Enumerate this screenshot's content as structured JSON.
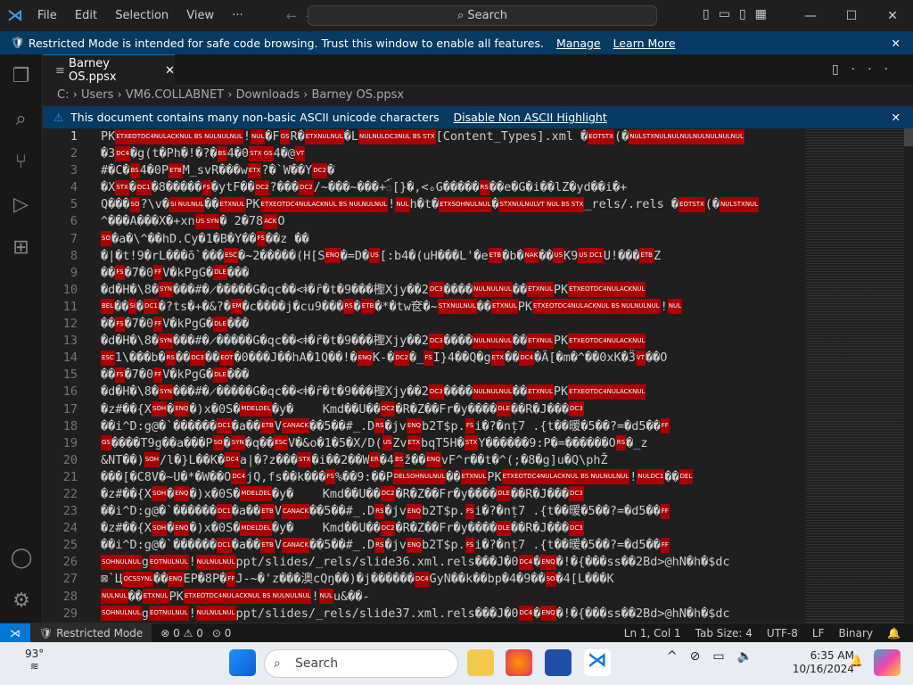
{
  "title_bar": {
    "menu": [
      "File",
      "Edit",
      "Selection",
      "View",
      "···"
    ],
    "search": "Search"
  },
  "banner": {
    "text": "Restricted Mode is intended for safe code browsing. Trust this window to enable all features.",
    "manage": "Manage",
    "learn_more": "Learn More"
  },
  "tab": {
    "label": "Barney OS.ppsx"
  },
  "breadcrumb": [
    "C:",
    "Users",
    "VM6.COLLABNET",
    "Downloads",
    "Barney OS.ppsx"
  ],
  "warning": {
    "text": "This document contains many non-basic ASCII unicode characters",
    "action": "Disable Non ASCII Highlight"
  },
  "editor": {
    "lines": [
      "PK{ETXEOTDC4NULACKNUL BS NULNULNUL}!{NUL}�F{GS}R�{ETXNULNUL}�L{NULNULDC3NUL BS STX}[Content_Types].xml �{EOTSTX}(�{NULSTXNULNULNULNULNULNULNUL}",
      "�3{DC4}�g(t�Ph�!�?�{BS}4�0{STX GS}4�@{VT}",
      "#�C�{BS}4�0P{ETB}M_svR���w{ETX}?�`W��Y{DC2}�",
      "�X{STX}�{DC1}�8�����{FS}�ytF��{DC2}?���{DC2}/~���~���+ꪸ[}�,<ₒG�����{RS}��e�G�i��lZ�yd��i�+",
      "Q���{SO}?\\v�{SI NULNUL}��{ETXNUL}PK{ETXEOTDC4NULACKNUL BS NULNULNUL}!{NUL}h�t�{ETXSOHNULNUL}�{STXNULNULVT NUL BS STX}_rels/.rels �{EOTSTX}(�{NULSTXNUL}",
      "^���A���X�+xn{US SYN}� 2�78{ACK}O",
      "{SO}�a�\\^��hD.Cy�1�B�Y��{FS}��z ��",
      "�|�t!9�rL���ō`���{ESC}�~2�����(H[S{ENQ}�=D�{US}[:b4�(uH���L'�e{ETB}�b�{NAK}��{US}K9{US DC1}U!���{ETB}Z",
      "��{FS}�7�0{FF}V�kPgG�{DLE}���",
      "�d�H�\\8�{SYN}���#�̷�����G�qc��<ꬸ�ȓ�t�9���檉Xjy��2{DC3}����{NULNULNUL}��{ETXNUL}PK{ETXEOTDC4NULACKNUL}",
      "{BEL}��{SI}�{DC1}�?ts�+�&?�{EM}�c����j�cu9���{RS}�{ETB}�*�tw奁�~{STXNULNUL}��{ETXNUL}PK{ETXEOTDC4NULACKNUL BS NULNULNUL}!{NUL}",
      "��{FS}�7�0{FF}V�kPgG�{DLE}���",
      "�d�H�\\8�{SYN}���#�̷�����G�qc��<ꬸ�ȓ�t�9���檉Xjy��2{DC3}����{NULNULNUL}��{ETXNUL}PK{ETXEOTDC4NULACKNUL}",
      "{ESC}1\\���b�{RS}��{DC3}��{EOT}�0���J��hA�1Q��!�{ENQ}K-�{DC2}�_{FS}I}4��Q�g{ETX}��{DC4}�Ã[�m�^��0xK�Ӟ{VT}��O",
      "��{FS}�7�0{FF}V�kPgG�{DLE}���",
      "�d�H�\\8�{SYN}���#�̷�����G�qc��<ꬸ�ȓ�t�9���檉Xjy��2{DC3}����{NULNULNUL}��{ETXNUL}PK{ETXEOTDC4NULACKNUL}",
      "�z#��{X{SOH}�{ENQ}�)x�0S�{MDELDEL}�y�    Kmd��U��{DC2}�R�Z��Fr�y����{DLE}��R�J���{DC3}",
      "��i^D:g@�`������{DC1}�a��{ETB}V{CANACK}��5��#_.D{RS}�jv{ENQ}b2T$p.{FS}i�?�nț7 .{t��暖�5��?=�d5��{FF}",
      "{GS}����T9g��a���P{SO}�{SYN}�q��{ESC}V�&o�1�5�X/D({US}Zv{ETX}bqT5H�{STX}Y������9:P�=������O{RS}�_z",
      "&NT��){SOH}/l�}L��K�{DC4}a|�?z���{STX}�i��2��W{ER}�4{BS}ž��{ENQ}vF^r��t�^(;�8�g]u�Q\\phŽ",
      "���[�C8V�~U�*�W��O{DC4}jQ,fs��k���{FS}%��9:��P{DELSOHNULNUL}��{ETXNUL}PK{ETXEOTDC4NULACKNUL BS NULNULNUL}!{NULDC1}��{DEL}",
      "�z#��{X{SOH}�{ENQ}�)x�0S�{MDELDEL}�y�    Kmd��U��{DC2}�R�Z��Fr�y����{DLE}��R�J���{DC3}",
      "��i^D:g@�`������{DC1}�a��{ETB}V{CANACK}��5��#_.D{RS}�jv{ENQ}b2T$p.{FS}i�?�nț7 .{t��暖�5��?=�d5��{FF}",
      "�z#��{X{SOH}�{ENQ}�)x�0S�{MDELDEL}�y�    Kmd��U��{DC2}�R�Z��Fr�y����{DLE}��R�J���{DC3}",
      "��i^D:g@�`������{DC1}�a��{ETB}V{CANACK}��5��#_.D{RS}�jv{ENQ}b2T$p.{FS}i�?�nț7 .{t��暖�5��?=�d5��{FF}",
      "{SOHNULNUL}g{EOTNULNUL}!{NULNULNUL}ppt/slides/_rels/slide36.xml.rels���J�0{DC4}�{ENQ}�!�{���ss��2Bd>@hN�h�$dc",
      "⊠`Ц{OCSSYNL}��{ENQ}EP�8P�{FF}J-~�'z���澳cQŋ��)�j������{DC4}GyN��k��bp�4�9��{SO}�4[L���K",
      "{NULNUL}��{ETXNUL}PK{ETXEOTDC4NULACKNUL BS NULNULNUL}!{NUL}u&��-",
      "{SOHNULNUL}g{EOTNULNUL}!{NULNULNUL}ppt/slides/_rels/slide37.xml.rels���J�0{DC4}�{ENQ}�!�{���ss��2Bd>@hN�h�$dc"
    ]
  },
  "status_bar": {
    "mode": "Restricted Mode",
    "errors": "0",
    "warnings": "0",
    "ports": "0",
    "position": "Ln 1, Col 1",
    "tab_size": "Tab Size: 4",
    "encoding": "UTF-8",
    "eol": "LF",
    "language": "Binary"
  },
  "taskbar": {
    "temperature": "93°",
    "search": "Search",
    "time": "6:35 AM",
    "date": "10/16/2024",
    "badge": "1"
  },
  "colors": {
    "accent": "#0078d4",
    "banner": "#063b63",
    "control_char": "#aa0000"
  }
}
